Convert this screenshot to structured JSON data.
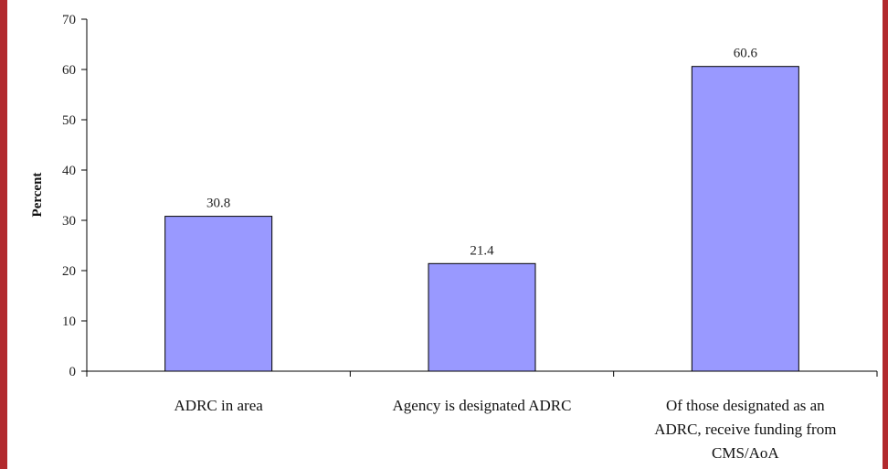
{
  "chart_data": {
    "type": "bar",
    "title": "",
    "xlabel": "",
    "ylabel": "Percent",
    "ylim": [
      0,
      70
    ],
    "yticks": [
      0,
      10,
      20,
      30,
      40,
      50,
      60,
      70
    ],
    "categories": [
      [
        "ADRC in area"
      ],
      [
        "Agency is designated ADRC"
      ],
      [
        "Of those designated as an",
        "ADRC, receive funding from",
        "CMS/AoA"
      ]
    ],
    "values": [
      30.8,
      21.4,
      60.6
    ],
    "data_labels": [
      "30.8",
      "21.4",
      "60.6"
    ],
    "bar_color": "#9999ff",
    "bar_edge_color": "#000000",
    "legend": "none",
    "grid": false
  },
  "colors": {
    "border": "#b22a2e",
    "background": "#ffffff"
  }
}
